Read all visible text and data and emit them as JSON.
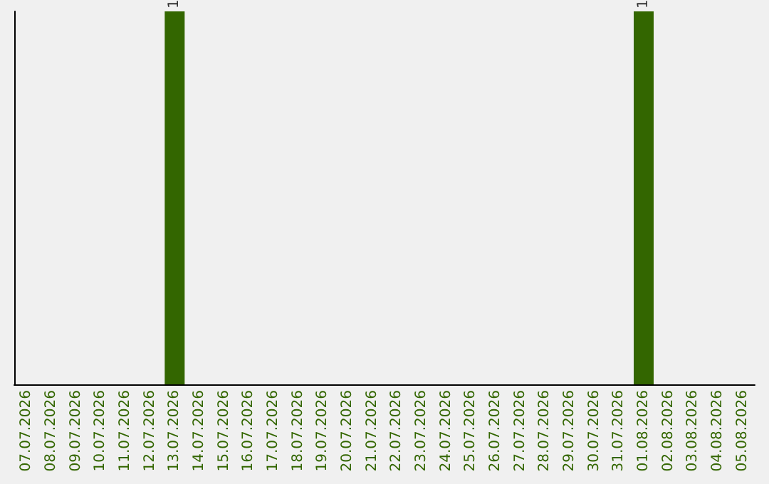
{
  "chart_data": {
    "type": "bar",
    "categories": [
      "07.07.2026",
      "08.07.2026",
      "09.07.2026",
      "10.07.2026",
      "11.07.2026",
      "12.07.2026",
      "13.07.2026",
      "14.07.2026",
      "15.07.2026",
      "16.07.2026",
      "17.07.2026",
      "18.07.2026",
      "19.07.2026",
      "20.07.2026",
      "21.07.2026",
      "22.07.2026",
      "23.07.2026",
      "24.07.2026",
      "25.07.2026",
      "26.07.2026",
      "27.07.2026",
      "28.07.2026",
      "29.07.2026",
      "30.07.2026",
      "31.07.2026",
      "01.08.2026",
      "02.08.2026",
      "03.08.2026",
      "04.08.2026",
      "05.08.2026"
    ],
    "values": [
      0,
      0,
      0,
      0,
      0,
      0,
      1,
      0,
      0,
      0,
      0,
      0,
      0,
      0,
      0,
      0,
      0,
      0,
      0,
      0,
      0,
      0,
      0,
      0,
      0,
      1,
      0,
      0,
      0,
      0
    ],
    "value_labels": [
      null,
      null,
      null,
      null,
      null,
      null,
      "1",
      null,
      null,
      null,
      null,
      null,
      null,
      null,
      null,
      null,
      null,
      null,
      null,
      null,
      null,
      null,
      null,
      null,
      null,
      "1",
      null,
      null,
      null,
      null
    ],
    "color": "#336600",
    "tick_labels": "x"
  }
}
